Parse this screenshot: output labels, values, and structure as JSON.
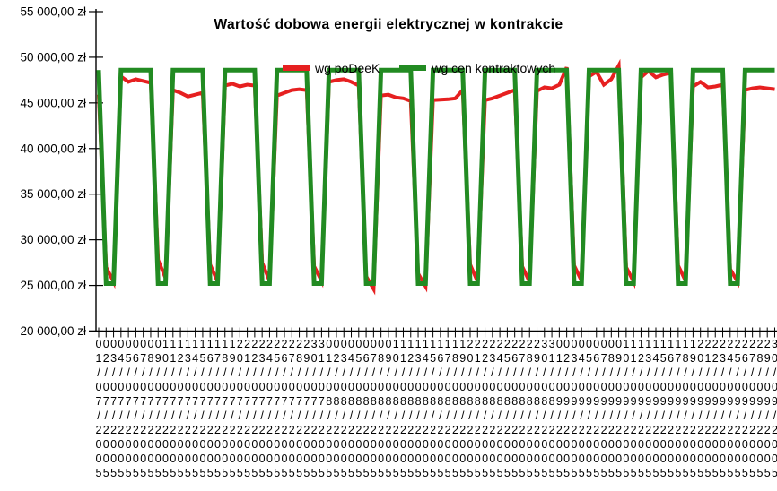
{
  "chart_data": {
    "type": "line",
    "title": "Wartość dobowa energii elektrycznej w kontrakcie",
    "ylim": [
      20000,
      55000
    ],
    "grid": false,
    "legend_position": "top-inside",
    "y_ticks": [
      {
        "value": 55000,
        "label": "55 000,00 zł"
      },
      {
        "value": 50000,
        "label": "50 000,00 zł"
      },
      {
        "value": 45000,
        "label": "45 000,00 zł"
      },
      {
        "value": 40000,
        "label": "40 000,00 zł"
      },
      {
        "value": 35000,
        "label": "35 000,00 zł"
      },
      {
        "value": 30000,
        "label": "30 000,00 zł"
      },
      {
        "value": 25000,
        "label": "25 000,00 zł"
      },
      {
        "value": 20000,
        "label": "20 000,00 zł"
      }
    ],
    "x_labels": [
      "01/07/2005",
      "02/07/2005",
      "03/07/2005",
      "04/07/2005",
      "05/07/2005",
      "06/07/2005",
      "07/07/2005",
      "08/07/2005",
      "09/07/2005",
      "10/07/2005",
      "11/07/2005",
      "12/07/2005",
      "13/07/2005",
      "14/07/2005",
      "15/07/2005",
      "16/07/2005",
      "17/07/2005",
      "18/07/2005",
      "19/07/2005",
      "20/07/2005",
      "21/07/2005",
      "22/07/2005",
      "23/07/2005",
      "24/07/2005",
      "25/07/2005",
      "26/07/2005",
      "27/07/2005",
      "28/07/2005",
      "29/07/2005",
      "30/07/2005",
      "31/07/2005",
      "01/08/2005",
      "02/08/2005",
      "03/08/2005",
      "04/08/2005",
      "05/08/2005",
      "06/08/2005",
      "07/08/2005",
      "08/08/2005",
      "09/08/2005",
      "10/08/2005",
      "11/08/2005",
      "12/08/2005",
      "13/08/2005",
      "14/08/2005",
      "15/08/2005",
      "16/08/2005",
      "17/08/2005",
      "18/08/2005",
      "19/08/2005",
      "20/08/2005",
      "21/08/2005",
      "22/08/2005",
      "23/08/2005",
      "24/08/2005",
      "25/08/2005",
      "26/08/2005",
      "27/08/2005",
      "28/08/2005",
      "29/08/2005",
      "30/08/2005",
      "31/08/2005",
      "01/09/2005",
      "02/09/2005",
      "03/09/2005",
      "04/09/2005",
      "05/09/2005",
      "06/09/2005",
      "07/09/2005",
      "08/09/2005",
      "09/09/2005",
      "10/09/2005",
      "11/09/2005",
      "12/09/2005",
      "13/09/2005",
      "14/09/2005",
      "15/09/2005",
      "16/09/2005",
      "17/09/2005",
      "18/09/2005",
      "19/09/2005",
      "20/09/2005",
      "21/09/2005",
      "22/09/2005",
      "23/09/2005",
      "24/09/2005",
      "25/09/2005",
      "26/09/2005",
      "27/09/2005",
      "28/09/2005",
      "29/09/2005",
      "30/09/2005"
    ],
    "series": [
      {
        "name": "wg poDeeK",
        "color": "#E62020",
        "stroke_width": 4,
        "values": [
          45900,
          27000,
          25400,
          47900,
          47300,
          47600,
          47400,
          47200,
          27800,
          25800,
          46400,
          46100,
          45700,
          45900,
          46100,
          27300,
          25400,
          46900,
          47100,
          46800,
          47000,
          46900,
          27500,
          25500,
          45800,
          46100,
          46400,
          46500,
          46400,
          27100,
          25500,
          47300,
          47500,
          47600,
          47300,
          46900,
          26000,
          24600,
          45800,
          45900,
          45600,
          45500,
          45200,
          26300,
          24900,
          45300,
          45350,
          45400,
          45500,
          46400,
          27300,
          25400,
          45300,
          45500,
          45800,
          46100,
          46400,
          27100,
          25400,
          46300,
          46700,
          46600,
          47000,
          48900,
          27200,
          25500,
          47900,
          48400,
          47000,
          47600,
          49100,
          27000,
          25400,
          47800,
          48500,
          47800,
          48100,
          48300,
          27200,
          25500,
          46800,
          47300,
          46700,
          46800,
          47000,
          26800,
          25400,
          46400,
          46600,
          46700,
          46600,
          46500
        ]
      },
      {
        "name": "wg cen kontraktowych",
        "color": "#228B22",
        "stroke_width": 5,
        "values": [
          48600,
          25200,
          25200,
          48600,
          48600,
          48600,
          48600,
          48600,
          25200,
          25200,
          48600,
          48600,
          48600,
          48600,
          48600,
          25200,
          25200,
          48600,
          48600,
          48600,
          48600,
          48600,
          25200,
          25200,
          48600,
          48600,
          48600,
          48600,
          48600,
          25200,
          25200,
          48600,
          48600,
          48600,
          48600,
          48600,
          25200,
          25200,
          48600,
          48600,
          48600,
          48600,
          48600,
          25200,
          25200,
          48600,
          48600,
          48600,
          48600,
          48600,
          25200,
          25200,
          48600,
          48600,
          48600,
          48600,
          48600,
          25200,
          25200,
          48600,
          48600,
          48600,
          48600,
          48600,
          25200,
          25200,
          48600,
          48600,
          48600,
          48600,
          48600,
          25200,
          25200,
          48600,
          48600,
          48600,
          48600,
          48600,
          25200,
          25200,
          48600,
          48600,
          48600,
          48600,
          48600,
          25200,
          25200,
          48600,
          48600,
          48600,
          48600,
          48600
        ]
      }
    ],
    "legend": [
      {
        "name": "wg poDeeK",
        "color": "#E62020"
      },
      {
        "name": "wg cen kontraktowych",
        "color": "#228B22"
      }
    ]
  }
}
